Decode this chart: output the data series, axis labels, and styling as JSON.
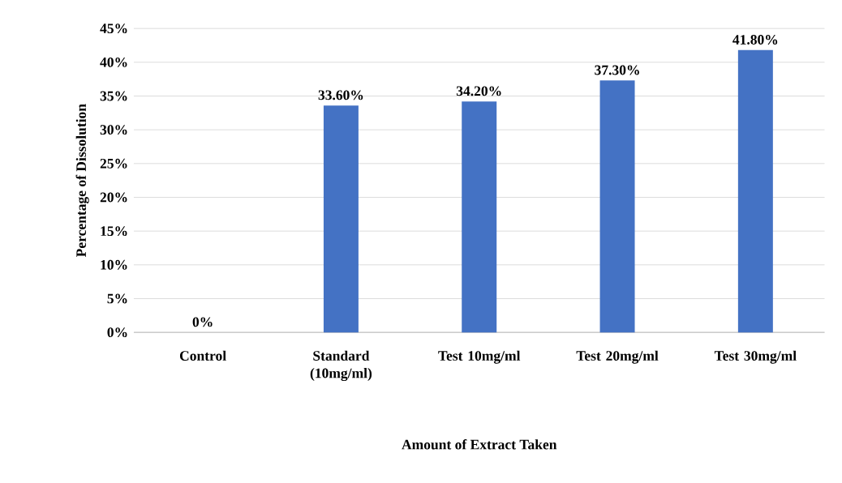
{
  "chart_data": {
    "type": "bar",
    "categories": [
      "Control",
      "Standard (10mg/ml)",
      "Test 10mg/ml",
      "Test 20mg/ml",
      "Test 30mg/ml"
    ],
    "values": [
      0,
      33.6,
      34.2,
      37.3,
      41.8
    ],
    "value_labels": [
      "0%",
      "33.60%",
      "34.20%",
      "37.30%",
      "41.80%"
    ],
    "color": "#4472c4",
    "xlabel": "Amount of Extract Taken",
    "ylabel": "Percentage of Dissolution",
    "ylim": [
      0,
      45
    ],
    "yticks": [
      {
        "value": 0,
        "label": "0%"
      },
      {
        "value": 5,
        "label": "5%"
      },
      {
        "value": 10,
        "label": "10%"
      },
      {
        "value": 15,
        "label": "15%"
      },
      {
        "value": 20,
        "label": "20%"
      },
      {
        "value": 25,
        "label": "25%"
      },
      {
        "value": 30,
        "label": "30%"
      },
      {
        "value": 35,
        "label": "35%"
      },
      {
        "value": 40,
        "label": "40%"
      },
      {
        "value": 45,
        "label": "45%"
      }
    ],
    "grid": "y"
  }
}
